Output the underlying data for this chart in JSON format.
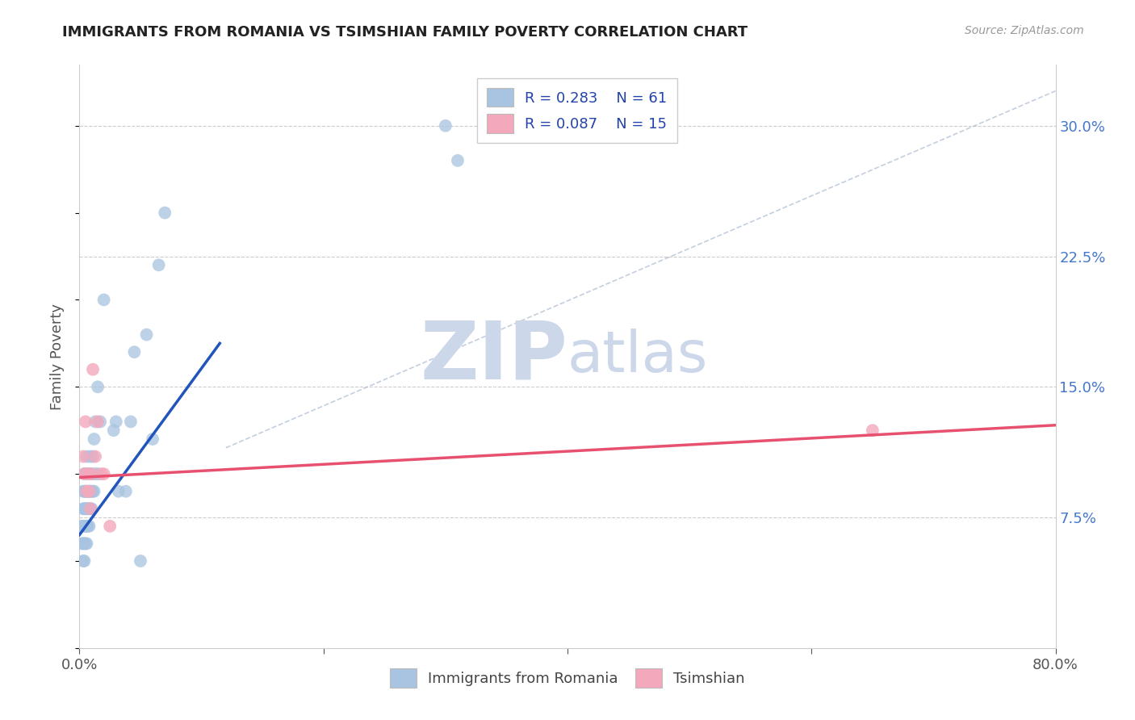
{
  "title": "IMMIGRANTS FROM ROMANIA VS TSIMSHIAN FAMILY POVERTY CORRELATION CHART",
  "source": "Source: ZipAtlas.com",
  "ylabel": "Family Poverty",
  "xlim": [
    0.0,
    0.8
  ],
  "ylim": [
    0.0,
    0.335
  ],
  "yticks_right": [
    0.075,
    0.15,
    0.225,
    0.3
  ],
  "ytick_labels_right": [
    "7.5%",
    "15.0%",
    "22.5%",
    "30.0%"
  ],
  "legend_R1": "R = 0.283",
  "legend_N1": "N = 61",
  "legend_R2": "R = 0.087",
  "legend_N2": "N = 15",
  "color_romania": "#a8c4e0",
  "color_tsimshian": "#f4a8bc",
  "color_line_romania": "#2255bb",
  "color_line_tsimshian": "#e85070",
  "watermark_zip": "ZIP",
  "watermark_atlas": "atlas",
  "watermark_color": "#ccd8ea",
  "background_color": "#ffffff",
  "title_color": "#222222",
  "romania_x": [
    0.002,
    0.002,
    0.003,
    0.003,
    0.003,
    0.003,
    0.003,
    0.004,
    0.004,
    0.004,
    0.004,
    0.004,
    0.004,
    0.005,
    0.005,
    0.005,
    0.005,
    0.005,
    0.006,
    0.006,
    0.006,
    0.006,
    0.006,
    0.006,
    0.007,
    0.007,
    0.007,
    0.007,
    0.008,
    0.008,
    0.008,
    0.008,
    0.009,
    0.009,
    0.009,
    0.01,
    0.01,
    0.01,
    0.011,
    0.011,
    0.012,
    0.012,
    0.013,
    0.013,
    0.015,
    0.015,
    0.017,
    0.02,
    0.028,
    0.03,
    0.032,
    0.038,
    0.042,
    0.045,
    0.05,
    0.055,
    0.06,
    0.065,
    0.07,
    0.3,
    0.31
  ],
  "romania_y": [
    0.06,
    0.07,
    0.05,
    0.06,
    0.07,
    0.08,
    0.09,
    0.05,
    0.06,
    0.07,
    0.08,
    0.09,
    0.1,
    0.06,
    0.07,
    0.08,
    0.09,
    0.1,
    0.06,
    0.07,
    0.08,
    0.09,
    0.1,
    0.11,
    0.07,
    0.08,
    0.09,
    0.1,
    0.07,
    0.08,
    0.09,
    0.1,
    0.08,
    0.09,
    0.11,
    0.08,
    0.09,
    0.1,
    0.09,
    0.11,
    0.09,
    0.12,
    0.1,
    0.13,
    0.1,
    0.15,
    0.13,
    0.2,
    0.125,
    0.13,
    0.09,
    0.09,
    0.13,
    0.17,
    0.05,
    0.18,
    0.12,
    0.22,
    0.25,
    0.3,
    0.28
  ],
  "tsimshian_x": [
    0.003,
    0.004,
    0.005,
    0.006,
    0.007,
    0.008,
    0.009,
    0.01,
    0.011,
    0.013,
    0.015,
    0.018,
    0.02,
    0.025,
    0.65
  ],
  "tsimshian_y": [
    0.11,
    0.1,
    0.13,
    0.09,
    0.1,
    0.09,
    0.08,
    0.1,
    0.16,
    0.11,
    0.13,
    0.1,
    0.1,
    0.07,
    0.125
  ],
  "blue_line_x": [
    0.0,
    0.115
  ],
  "blue_line_y": [
    0.065,
    0.175
  ],
  "pink_line_x": [
    0.0,
    0.8
  ],
  "pink_line_y": [
    0.098,
    0.128
  ],
  "diag_line_x": [
    0.12,
    0.8
  ],
  "diag_line_y": [
    0.115,
    0.32
  ]
}
